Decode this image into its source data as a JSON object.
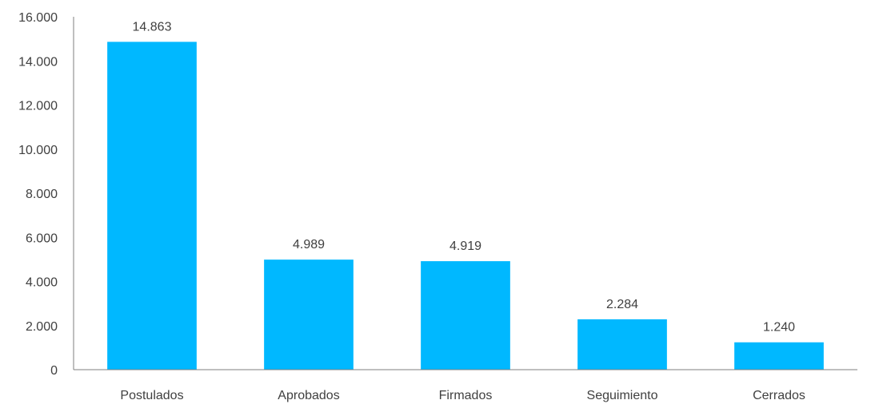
{
  "chart_data": {
    "type": "bar",
    "categories": [
      "Postulados",
      "Aprobados",
      "Firmados",
      "Seguimiento",
      "Cerrados"
    ],
    "values": [
      14863,
      4989,
      4919,
      2284,
      1240
    ],
    "value_labels": [
      "14.863",
      "4.989",
      "4.919",
      "2.284",
      "1.240"
    ],
    "ylim": [
      0,
      16000
    ],
    "yticks": [
      0,
      2000,
      4000,
      6000,
      8000,
      10000,
      12000,
      14000,
      16000
    ],
    "ytick_labels": [
      "0",
      "2.000",
      "4.000",
      "6.000",
      "8.000",
      "10.000",
      "12.000",
      "14.000",
      "16.000"
    ],
    "grid": false,
    "legend": "none",
    "title": "",
    "xlabel": "",
    "ylabel": "",
    "bar_color": "#00B8FF",
    "axis_color": "#7f7f7f",
    "text_color": "#404040"
  }
}
